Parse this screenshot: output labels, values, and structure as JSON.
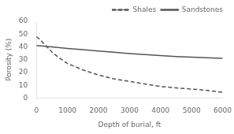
{
  "chart_data": {
    "type": "line",
    "xlabel": "Depth of burial, ft",
    "ylabel": "Porosity (%)",
    "xlim": [
      0,
      6000
    ],
    "ylim": [
      0,
      60
    ],
    "xticks": [
      0,
      1000,
      2000,
      3000,
      4000,
      5000,
      6000
    ],
    "yticks": [
      0,
      10,
      20,
      30,
      40,
      50,
      60
    ],
    "grid": false,
    "legend": "upper right",
    "series": [
      {
        "name": "Shales",
        "color": "#555555",
        "line_style": "dashed",
        "marker": "none",
        "x": [
          0,
          100,
          300,
          500,
          700,
          1000,
          1500,
          2000,
          2500,
          3000,
          3500,
          4000,
          4500,
          5000,
          5500,
          6000
        ],
        "values": [
          48,
          46,
          41,
          36,
          32,
          27,
          22,
          18,
          15,
          13,
          11,
          9,
          8,
          7,
          6,
          4.5
        ]
      },
      {
        "name": "Sandstones",
        "color": "#555555",
        "line_style": "solid",
        "marker": "none",
        "x": [
          0,
          500,
          1000,
          1500,
          2000,
          2500,
          3000,
          3500,
          4000,
          4500,
          5000,
          5500,
          6000
        ],
        "values": [
          41,
          40,
          38.8,
          37.8,
          36.8,
          35.8,
          34.8,
          34.0,
          33.2,
          32.5,
          32.0,
          31.5,
          31.0
        ]
      }
    ]
  }
}
